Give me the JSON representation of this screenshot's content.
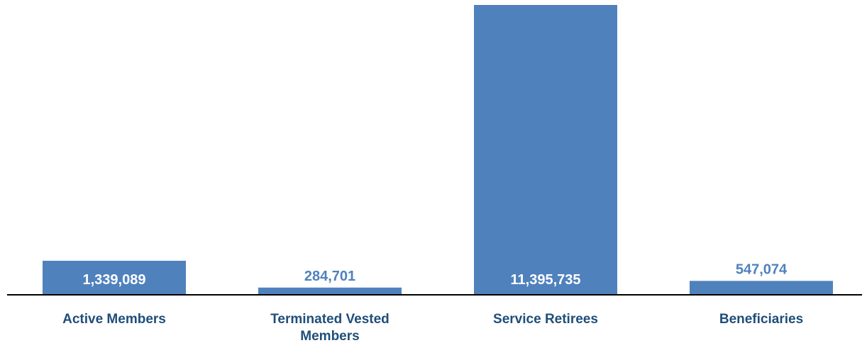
{
  "chart_data": {
    "type": "bar",
    "categories": [
      "Active Members",
      "Terminated Vested Members",
      "Service Retirees",
      "Beneficiaries"
    ],
    "category_lines": [
      [
        "Active Members"
      ],
      [
        "Terminated Vested",
        "Members"
      ],
      [
        "Service Retirees"
      ],
      [
        "Beneficiaries"
      ]
    ],
    "values": [
      1339089,
      284701,
      11395735,
      547074
    ],
    "value_labels": [
      "1,339,089",
      "284,701",
      "11,395,735",
      "547,074"
    ],
    "ylim": [
      0,
      11395735
    ],
    "grid": false,
    "legend": "none",
    "colors": {
      "bar": "#4f81bd",
      "label_on_bar": "#ffffff",
      "label_above_bar": "#4f81bd",
      "category_text": "#1f4e79",
      "axis": "#000000"
    }
  }
}
